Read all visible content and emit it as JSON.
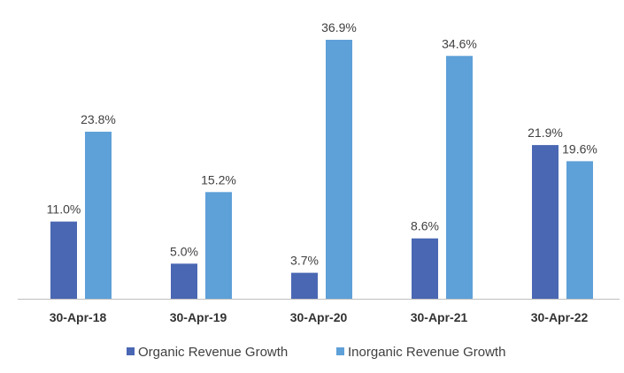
{
  "chart_data": {
    "type": "bar",
    "categories": [
      "30-Apr-18",
      "30-Apr-19",
      "30-Apr-20",
      "30-Apr-21",
      "30-Apr-22"
    ],
    "series": [
      {
        "name": "Organic Revenue Growth",
        "values": [
          11.0,
          5.0,
          3.7,
          8.6,
          21.9
        ],
        "labels": [
          "11.0%",
          "5.0%",
          "3.7%",
          "8.6%",
          "21.9%"
        ],
        "color": "#4a67b3"
      },
      {
        "name": "Inorganic Revenue Growth",
        "values": [
          23.8,
          15.2,
          36.9,
          34.6,
          19.6
        ],
        "labels": [
          "23.8%",
          "15.2%",
          "36.9%",
          "34.6%",
          "19.6%"
        ],
        "color": "#5ea0d8"
      }
    ],
    "title": "",
    "xlabel": "",
    "ylabel": "",
    "ylim": [
      0,
      37
    ],
    "grid": false,
    "legend": "bottom",
    "axis_color": "#bfbfbf"
  }
}
